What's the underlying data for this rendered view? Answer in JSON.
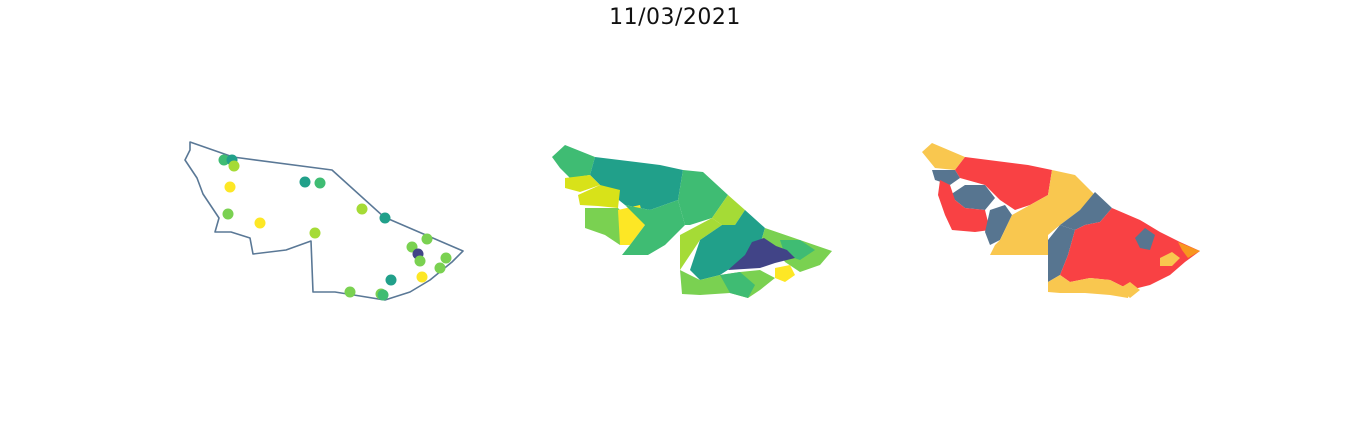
{
  "title": "11/03/2021",
  "colors": {
    "outline": "#5a7896",
    "viridis_dark": "#414487",
    "viridis_teal": "#21a08a",
    "viridis_green": "#3fbc73",
    "viridis_lightgreen": "#7ad151",
    "viridis_lime": "#a5db36",
    "viridis_yellow": "#fde725",
    "risk_red": "#f94144",
    "risk_yellow": "#f9c74f",
    "risk_orange": "#f8961e",
    "risk_slate": "#577590"
  }
}
